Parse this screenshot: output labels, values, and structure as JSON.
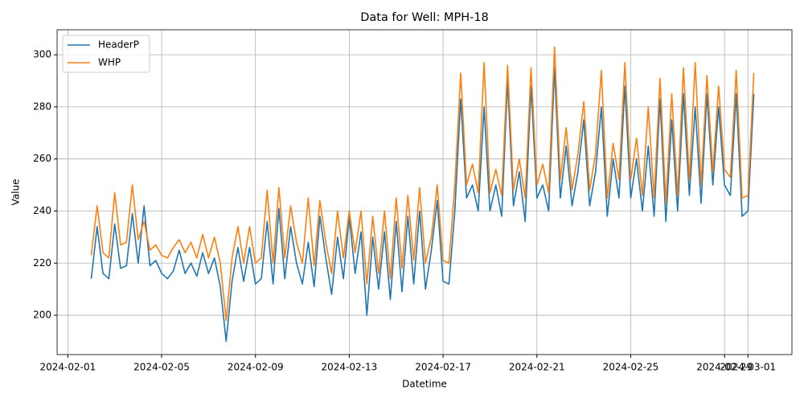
{
  "chart_data": {
    "type": "line",
    "title": "Data for Well: MPH-18",
    "x_label": "Datetime",
    "y_label": "Value",
    "x": [
      "2024-02-02 00:00",
      "2024-02-02 06:00",
      "2024-02-02 12:00",
      "2024-02-02 18:00",
      "2024-02-03 00:00",
      "2024-02-03 06:00",
      "2024-02-03 12:00",
      "2024-02-03 18:00",
      "2024-02-04 00:00",
      "2024-02-04 06:00",
      "2024-02-04 12:00",
      "2024-02-04 18:00",
      "2024-02-05 00:00",
      "2024-02-05 06:00",
      "2024-02-05 12:00",
      "2024-02-05 18:00",
      "2024-02-06 00:00",
      "2024-02-06 06:00",
      "2024-02-06 12:00",
      "2024-02-06 18:00",
      "2024-02-07 00:00",
      "2024-02-07 06:00",
      "2024-02-07 12:00",
      "2024-02-07 18:00",
      "2024-02-08 00:00",
      "2024-02-08 06:00",
      "2024-02-08 12:00",
      "2024-02-08 18:00",
      "2024-02-09 00:00",
      "2024-02-09 06:00",
      "2024-02-09 12:00",
      "2024-02-09 18:00",
      "2024-02-10 00:00",
      "2024-02-10 06:00",
      "2024-02-10 12:00",
      "2024-02-10 18:00",
      "2024-02-11 00:00",
      "2024-02-11 06:00",
      "2024-02-11 12:00",
      "2024-02-11 18:00",
      "2024-02-12 00:00",
      "2024-02-12 06:00",
      "2024-02-12 12:00",
      "2024-02-12 18:00",
      "2024-02-13 00:00",
      "2024-02-13 06:00",
      "2024-02-13 12:00",
      "2024-02-13 18:00",
      "2024-02-14 00:00",
      "2024-02-14 06:00",
      "2024-02-14 12:00",
      "2024-02-14 18:00",
      "2024-02-15 00:00",
      "2024-02-15 06:00",
      "2024-02-15 12:00",
      "2024-02-15 18:00",
      "2024-02-16 00:00",
      "2024-02-16 06:00",
      "2024-02-16 12:00",
      "2024-02-16 18:00",
      "2024-02-17 00:00",
      "2024-02-17 06:00",
      "2024-02-17 12:00",
      "2024-02-17 18:00",
      "2024-02-18 00:00",
      "2024-02-18 06:00",
      "2024-02-18 12:00",
      "2024-02-18 18:00",
      "2024-02-19 00:00",
      "2024-02-19 06:00",
      "2024-02-19 12:00",
      "2024-02-19 18:00",
      "2024-02-20 00:00",
      "2024-02-20 06:00",
      "2024-02-20 12:00",
      "2024-02-20 18:00",
      "2024-02-21 00:00",
      "2024-02-21 06:00",
      "2024-02-21 12:00",
      "2024-02-21 18:00",
      "2024-02-22 00:00",
      "2024-02-22 06:00",
      "2024-02-22 12:00",
      "2024-02-22 18:00",
      "2024-02-23 00:00",
      "2024-02-23 06:00",
      "2024-02-23 12:00",
      "2024-02-23 18:00",
      "2024-02-24 00:00",
      "2024-02-24 06:00",
      "2024-02-24 12:00",
      "2024-02-24 18:00",
      "2024-02-25 00:00",
      "2024-02-25 06:00",
      "2024-02-25 12:00",
      "2024-02-25 18:00",
      "2024-02-26 00:00",
      "2024-02-26 06:00",
      "2024-02-26 12:00",
      "2024-02-26 18:00",
      "2024-02-27 00:00",
      "2024-02-27 06:00",
      "2024-02-27 12:00",
      "2024-02-27 18:00",
      "2024-02-28 00:00",
      "2024-02-28 06:00",
      "2024-02-28 12:00",
      "2024-02-28 18:00",
      "2024-02-29 00:00",
      "2024-02-29 06:00",
      "2024-02-29 12:00",
      "2024-02-29 18:00",
      "2024-03-01 00:00",
      "2024-03-01 06:00"
    ],
    "series": [
      {
        "name": "HeaderP",
        "color": "#1f77b4",
        "values": [
          214,
          234,
          216,
          214,
          235,
          218,
          219,
          239,
          220,
          242,
          219,
          221,
          216,
          214,
          217,
          225,
          216,
          220,
          215,
          224,
          216,
          222,
          211,
          190,
          213,
          226,
          213,
          226,
          212,
          214,
          236,
          212,
          241,
          214,
          234,
          220,
          212,
          228,
          211,
          238,
          222,
          208,
          230,
          214,
          238,
          216,
          232,
          200,
          230,
          210,
          232,
          206,
          236,
          209,
          238,
          212,
          240,
          210,
          225,
          244,
          213,
          212,
          240,
          283,
          245,
          250,
          240,
          280,
          240,
          250,
          238,
          290,
          242,
          255,
          236,
          288,
          245,
          250,
          240,
          295,
          245,
          265,
          242,
          255,
          275,
          242,
          255,
          280,
          238,
          260,
          245,
          288,
          245,
          260,
          240,
          265,
          238,
          283,
          236,
          275,
          240,
          285,
          246,
          280,
          243,
          285,
          250,
          280,
          250,
          246,
          285,
          238,
          240,
          285
        ]
      },
      {
        "name": "WHP",
        "color": "#ff7f0e",
        "values": [
          223,
          242,
          224,
          222,
          247,
          227,
          228,
          250,
          229,
          236,
          225,
          227,
          223,
          222,
          226,
          229,
          224,
          228,
          222,
          231,
          222,
          230,
          220,
          198,
          222,
          234,
          220,
          234,
          220,
          222,
          248,
          220,
          249,
          222,
          242,
          228,
          220,
          245,
          219,
          244,
          228,
          216,
          240,
          222,
          240,
          224,
          240,
          212,
          238,
          216,
          240,
          214,
          245,
          218,
          246,
          221,
          249,
          220,
          230,
          250,
          221,
          220,
          250,
          293,
          250,
          258,
          247,
          297,
          247,
          256,
          246,
          296,
          248,
          260,
          245,
          295,
          250,
          258,
          247,
          303,
          252,
          272,
          248,
          262,
          282,
          248,
          262,
          294,
          245,
          266,
          252,
          297,
          252,
          268,
          246,
          280,
          245,
          291,
          243,
          285,
          246,
          295,
          252,
          297,
          250,
          292,
          255,
          288,
          256,
          253,
          294,
          245,
          246,
          293
        ]
      }
    ],
    "xlim": [
      "2024-01-31 13:00",
      "2024-03-02 21:00"
    ],
    "xticks": [
      "2024-02-01",
      "2024-02-05",
      "2024-02-09",
      "2024-02-13",
      "2024-02-17",
      "2024-02-21",
      "2024-02-25",
      "2024-02-29",
      "2024-03-01"
    ],
    "ylim": [
      184.9,
      309.6
    ],
    "yticks": [
      200,
      220,
      240,
      260,
      280,
      300
    ],
    "grid": true,
    "legend": "upper left"
  }
}
